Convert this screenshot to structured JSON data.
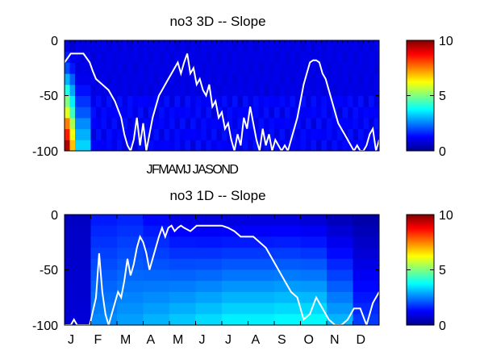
{
  "chart_data": [
    {
      "type": "heatmap",
      "title": "no3 3D   -- Slope",
      "xlabel": "",
      "ylabel": "",
      "ylim": [
        -100,
        0
      ],
      "y_ticks": [
        "0",
        "-50",
        "-100"
      ],
      "x_tick_text": "JFMAMJ JASOND",
      "colorbar": {
        "min": 0,
        "max": 10,
        "ticks": [
          "0",
          "5",
          "10"
        ]
      },
      "background_value": 0.8,
      "depth_bins": [
        -100,
        -90,
        -80,
        -70,
        -60,
        -50,
        -40,
        -30,
        -20,
        -10,
        0
      ],
      "left_edge_profile": [
        9.5,
        8.5,
        7.5,
        6,
        5,
        4,
        3,
        2,
        1.5,
        1
      ],
      "line": {
        "name": "",
        "x_fraction": [
          0,
          0.02,
          0.03,
          0.06,
          0.08,
          0.09,
          0.1,
          0.12,
          0.14,
          0.16,
          0.18,
          0.19,
          0.2,
          0.21,
          0.22,
          0.23,
          0.24,
          0.25,
          0.26,
          0.27,
          0.28,
          0.29,
          0.3,
          0.31,
          0.32,
          0.33,
          0.34,
          0.35,
          0.36,
          0.37,
          0.38,
          0.39,
          0.4,
          0.41,
          0.42,
          0.43,
          0.44,
          0.45,
          0.46,
          0.47,
          0.48,
          0.49,
          0.5,
          0.51,
          0.52,
          0.53,
          0.54,
          0.55,
          0.56,
          0.57,
          0.58,
          0.59,
          0.6,
          0.61,
          0.62,
          0.63,
          0.64,
          0.65,
          0.66,
          0.67,
          0.68,
          0.69,
          0.7,
          0.71,
          0.72,
          0.73,
          0.74,
          0.75,
          0.76,
          0.77,
          0.78,
          0.79,
          0.8,
          0.81,
          0.82,
          0.83,
          0.84,
          0.85,
          0.86,
          0.87,
          0.88,
          0.89,
          0.9,
          0.91,
          0.92,
          0.93,
          0.94,
          0.95,
          0.96,
          0.97,
          0.98,
          0.99,
          1.0
        ],
        "y": [
          -20,
          -12,
          -12,
          -12,
          -20,
          -28,
          -35,
          -40,
          -45,
          -55,
          -70,
          -85,
          -95,
          -100,
          -90,
          -70,
          -95,
          -75,
          -100,
          -85,
          -70,
          -60,
          -50,
          -45,
          -40,
          -35,
          -30,
          -25,
          -20,
          -30,
          -20,
          -12,
          -30,
          -25,
          -40,
          -35,
          -45,
          -50,
          -40,
          -60,
          -55,
          -70,
          -65,
          -80,
          -75,
          -90,
          -100,
          -85,
          -95,
          -70,
          -80,
          -60,
          -75,
          -90,
          -100,
          -80,
          -95,
          -85,
          -100,
          -90,
          -95,
          -100,
          -95,
          -100,
          -90,
          -80,
          -70,
          -55,
          -40,
          -30,
          -20,
          -18,
          -18,
          -20,
          -30,
          -35,
          -45,
          -55,
          -65,
          -75,
          -80,
          -85,
          -90,
          -95,
          -100,
          -95,
          -100,
          -100,
          -95,
          -85,
          -80,
          -100,
          -90
        ]
      }
    },
    {
      "type": "heatmap",
      "title": "no3 1D   -- Slope",
      "xlabel": "",
      "ylabel": "",
      "ylim": [
        -100,
        0
      ],
      "y_ticks": [
        "0",
        "-50",
        "-100"
      ],
      "x_ticks": [
        "J",
        "F",
        "M",
        "A",
        "M",
        "J",
        "J",
        "A",
        "S",
        "O",
        "N",
        "D"
      ],
      "colorbar": {
        "min": 0,
        "max": 10,
        "ticks": [
          "0",
          "5",
          "10"
        ]
      },
      "months_top_value": [
        0.6,
        1.5,
        1.6,
        1.3,
        1.0,
        0.9,
        0.9,
        0.9,
        0.9,
        0.8,
        0.5,
        0.3
      ],
      "months_bottom_value": [
        0.8,
        2.6,
        2.8,
        3.0,
        3.2,
        3.4,
        3.6,
        3.6,
        3.7,
        3.7,
        3.0,
        1.8
      ],
      "line": {
        "name": "",
        "x_fraction": [
          0,
          0.02,
          0.03,
          0.04,
          0.06,
          0.08,
          0.1,
          0.11,
          0.12,
          0.13,
          0.14,
          0.15,
          0.16,
          0.17,
          0.18,
          0.19,
          0.2,
          0.21,
          0.22,
          0.23,
          0.24,
          0.25,
          0.26,
          0.27,
          0.28,
          0.29,
          0.3,
          0.31,
          0.32,
          0.33,
          0.34,
          0.35,
          0.36,
          0.37,
          0.38,
          0.4,
          0.42,
          0.44,
          0.46,
          0.48,
          0.5,
          0.52,
          0.54,
          0.56,
          0.58,
          0.6,
          0.62,
          0.64,
          0.66,
          0.68,
          0.7,
          0.72,
          0.74,
          0.75,
          0.76,
          0.78,
          0.8,
          0.82,
          0.84,
          0.86,
          0.88,
          0.9,
          0.92,
          0.94,
          0.96,
          0.98,
          1.0
        ],
        "y": [
          -100,
          -100,
          -95,
          -100,
          -100,
          -100,
          -75,
          -35,
          -70,
          -90,
          -100,
          -90,
          -80,
          -70,
          -75,
          -60,
          -40,
          -55,
          -45,
          -30,
          -20,
          -25,
          -35,
          -50,
          -40,
          -30,
          -20,
          -12,
          -20,
          -12,
          -10,
          -15,
          -12,
          -10,
          -12,
          -15,
          -10,
          -10,
          -10,
          -10,
          -10,
          -12,
          -15,
          -20,
          -20,
          -20,
          -25,
          -30,
          -40,
          -50,
          -60,
          -70,
          -75,
          -85,
          -95,
          -90,
          -75,
          -85,
          -95,
          -100,
          -100,
          -95,
          -85,
          -85,
          -100,
          -80,
          -70
        ]
      }
    }
  ]
}
